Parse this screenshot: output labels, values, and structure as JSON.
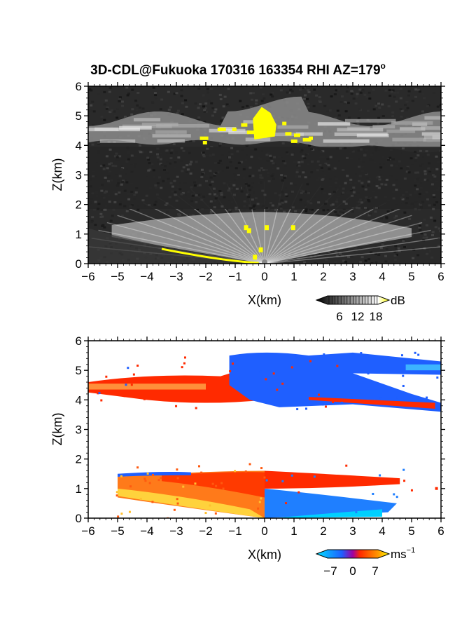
{
  "title": "3D-CDL@Fukuoka 170316 163354 RHI AZ=179",
  "title_degree": "o",
  "chart_data": [
    {
      "type": "heatmap",
      "name": "backscatter-intensity",
      "xlabel": "X(km)",
      "ylabel": "Z(km)",
      "xlim": [
        -6,
        6
      ],
      "ylim": [
        0,
        6
      ],
      "x_ticks": [
        -6,
        -5,
        -4,
        -3,
        -2,
        -1,
        0,
        1,
        2,
        3,
        4,
        5,
        6
      ],
      "y_ticks": [
        0,
        1,
        2,
        3,
        4,
        5,
        6
      ],
      "colorbar": {
        "unit": "dB",
        "ticks": [
          "6",
          "12",
          "18"
        ],
        "range": [
          0,
          20
        ],
        "colors": [
          "#000000",
          "#ffffff",
          "#ffff00"
        ]
      },
      "background": "#2a2a2a",
      "features": [
        {
          "label": "upper cloud layer",
          "z_range": [
            4.0,
            5.6
          ],
          "x_range": [
            -6,
            6
          ]
        },
        {
          "label": "lower aerosol layer",
          "z_range": [
            0.0,
            1.8
          ],
          "x_range": [
            -5.2,
            5
          ]
        },
        {
          "label": "strong echo core",
          "x": 0.0,
          "z_range": [
            4.2,
            5.3
          ],
          "color": "#ffff00"
        },
        {
          "label": "ground clutter",
          "x_range": [
            -3.5,
            0
          ],
          "z_range": [
            0.0,
            0.5
          ],
          "color": "#ffff00"
        }
      ]
    },
    {
      "type": "heatmap",
      "name": "doppler-velocity",
      "xlabel": "X(km)",
      "ylabel": "Z(km)",
      "xlim": [
        -6,
        6
      ],
      "ylim": [
        0,
        6
      ],
      "x_ticks": [
        -6,
        -5,
        -4,
        -3,
        -2,
        -1,
        0,
        1,
        2,
        3,
        4,
        5,
        6
      ],
      "y_ticks": [
        0,
        1,
        2,
        3,
        4,
        5,
        6
      ],
      "colorbar": {
        "unit": "ms",
        "unit_sup": "−1",
        "ticks": [
          "−7",
          "0",
          "7"
        ],
        "range": [
          -7,
          7
        ],
        "colors": [
          "#00e0ff",
          "#1f5fff",
          "#ff2a00",
          "#ffff00"
        ]
      },
      "background": "#ffffff",
      "features": [
        {
          "label": "upper layer receding",
          "x_range": [
            -6,
            -0.5
          ],
          "z_range": [
            3.9,
            4.9
          ],
          "velocity_sign": "positive"
        },
        {
          "label": "upper layer approaching",
          "x_range": [
            -1,
            6
          ],
          "z_range": [
            3.7,
            5.7
          ],
          "velocity_sign": "negative"
        },
        {
          "label": "lower layer receding",
          "x_range": [
            -5,
            0
          ],
          "z_range": [
            0.0,
            1.5
          ],
          "velocity_sign": "positive"
        },
        {
          "label": "lower layer approaching",
          "x_range": [
            0,
            4.5
          ],
          "z_range": [
            0.0,
            1.4
          ],
          "velocity_sign": "negative"
        }
      ]
    }
  ]
}
